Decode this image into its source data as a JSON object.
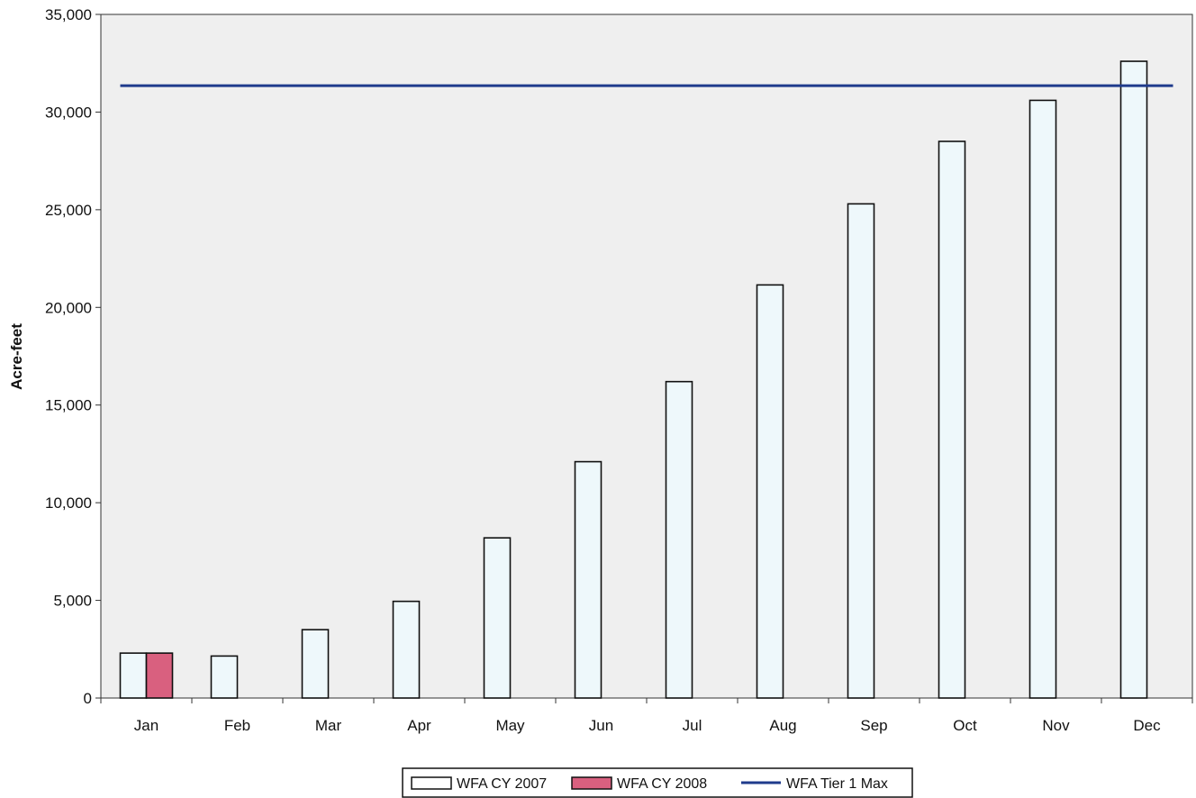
{
  "chart_data": {
    "type": "bar",
    "title": "",
    "xlabel": "",
    "ylabel": "Acre-feet",
    "ylim": [
      0,
      35000
    ],
    "yticks": [
      0,
      5000,
      10000,
      15000,
      20000,
      25000,
      30000,
      35000
    ],
    "ytick_labels": [
      "0",
      "5,000",
      "10,000",
      "15,000",
      "20,000",
      "25,000",
      "30,000",
      "35,000"
    ],
    "categories": [
      "Jan",
      "Feb",
      "Mar",
      "Apr",
      "May",
      "Jun",
      "Jul",
      "Aug",
      "Sep",
      "Oct",
      "Nov",
      "Dec"
    ],
    "series": [
      {
        "name": "WFA CY 2007",
        "type": "bar",
        "color": "#eef8fb",
        "values": [
          2300,
          2150,
          3500,
          4950,
          8200,
          12100,
          16200,
          21150,
          25300,
          28500,
          30600,
          32600
        ]
      },
      {
        "name": "WFA CY 2008",
        "type": "bar",
        "color": "#d9607f",
        "values": [
          2300,
          null,
          null,
          null,
          null,
          null,
          null,
          null,
          null,
          null,
          null,
          null
        ]
      },
      {
        "name": "WFA Tier 1 Max",
        "type": "line",
        "color": "#1f3b8c",
        "values": [
          31350,
          31350,
          31350,
          31350,
          31350,
          31350,
          31350,
          31350,
          31350,
          31350,
          31350,
          31350
        ]
      }
    ],
    "grid": false,
    "plot_background": "#efefef",
    "legend_position": "bottom"
  }
}
